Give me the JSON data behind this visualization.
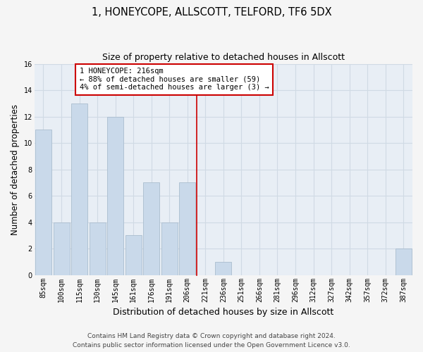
{
  "title": "1, HONEYCOPE, ALLSCOTT, TELFORD, TF6 5DX",
  "subtitle": "Size of property relative to detached houses in Allscott",
  "xlabel": "Distribution of detached houses by size in Allscott",
  "ylabel": "Number of detached properties",
  "categories": [
    "85sqm",
    "100sqm",
    "115sqm",
    "130sqm",
    "145sqm",
    "161sqm",
    "176sqm",
    "191sqm",
    "206sqm",
    "221sqm",
    "236sqm",
    "251sqm",
    "266sqm",
    "281sqm",
    "296sqm",
    "312sqm",
    "327sqm",
    "342sqm",
    "357sqm",
    "372sqm",
    "387sqm"
  ],
  "values": [
    11,
    4,
    13,
    4,
    12,
    3,
    7,
    4,
    7,
    0,
    1,
    0,
    0,
    0,
    0,
    0,
    0,
    0,
    0,
    0,
    2
  ],
  "bar_color": "#c9d9ea",
  "bar_edge_color": "#aabdce",
  "background_color": "#e8eef5",
  "grid_color": "#d0dae4",
  "fig_background": "#f5f5f5",
  "annotation_line1": "1 HONEYCOPE: 216sqm",
  "annotation_line2": "← 88% of detached houses are smaller (59)",
  "annotation_line3": "4% of semi-detached houses are larger (3) →",
  "annotation_box_color": "#ffffff",
  "annotation_box_edge_color": "#cc0000",
  "vline_color": "#cc0000",
  "vline_x_index": 9.0,
  "ylim": [
    0,
    16
  ],
  "yticks": [
    0,
    2,
    4,
    6,
    8,
    10,
    12,
    14,
    16
  ],
  "footer_line1": "Contains HM Land Registry data © Crown copyright and database right 2024.",
  "footer_line2": "Contains public sector information licensed under the Open Government Licence v3.0.",
  "title_fontsize": 10.5,
  "subtitle_fontsize": 9,
  "xlabel_fontsize": 9,
  "ylabel_fontsize": 8.5,
  "tick_fontsize": 7,
  "annotation_fontsize": 7.5,
  "footer_fontsize": 6.5
}
